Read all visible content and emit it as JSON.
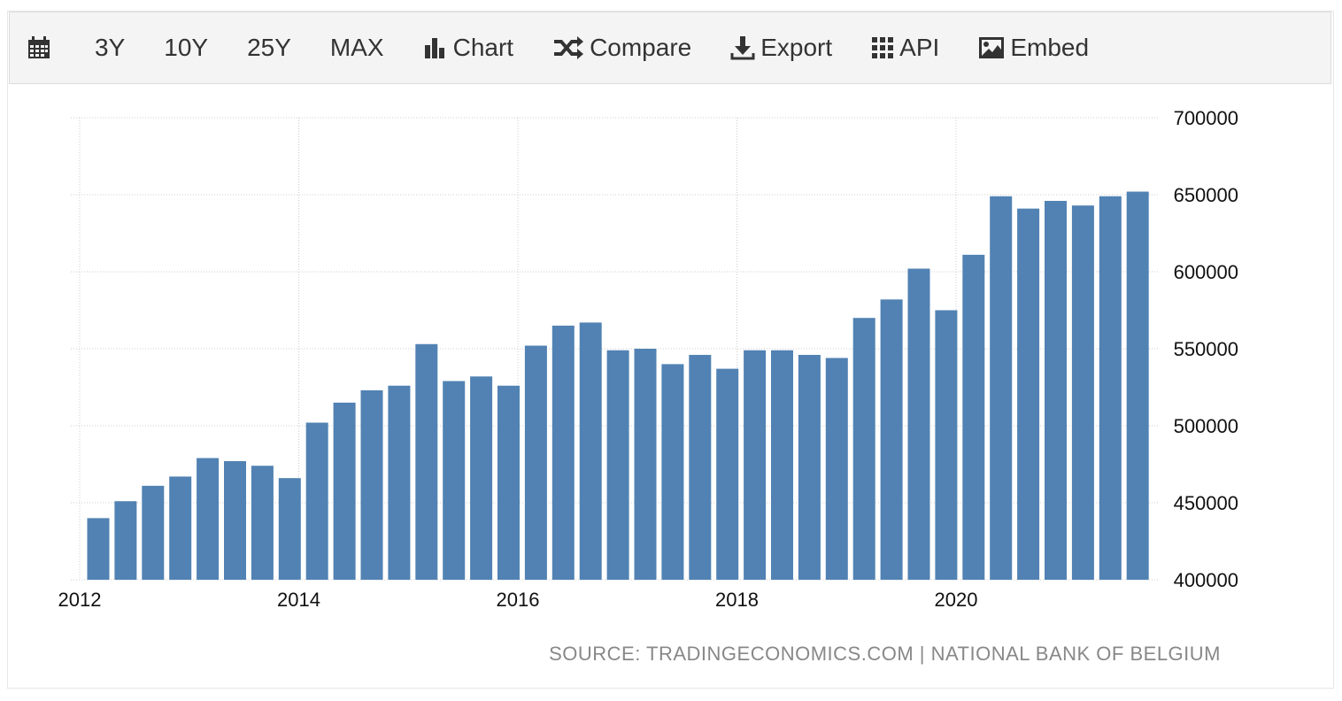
{
  "toolbar": {
    "items": [
      {
        "label": "",
        "icon": "calendar-icon"
      },
      {
        "label": "3Y"
      },
      {
        "label": "10Y"
      },
      {
        "label": "25Y"
      },
      {
        "label": "MAX"
      },
      {
        "label": "Chart",
        "icon": "bar-chart-icon"
      },
      {
        "label": "Compare",
        "icon": "shuffle-icon"
      },
      {
        "label": "Export",
        "icon": "download-icon"
      },
      {
        "label": "API",
        "icon": "grid-icon"
      },
      {
        "label": "Embed",
        "icon": "image-icon"
      }
    ]
  },
  "source": "SOURCE: TRADINGECONOMICS.COM | NATIONAL BANK OF BELGIUM",
  "chart_data": {
    "type": "bar",
    "color": "#5182b3",
    "x_ticks": [
      "2012",
      "2014",
      "2016",
      "2018",
      "2020"
    ],
    "y_ticks": [
      "400000",
      "450000",
      "500000",
      "550000",
      "600000",
      "650000",
      "700000"
    ],
    "ylim": [
      400000,
      700000
    ],
    "y_axis_side": "right",
    "grid": true,
    "values": [
      440000,
      451000,
      461000,
      467000,
      479000,
      477000,
      474000,
      466000,
      502000,
      515000,
      523000,
      526000,
      553000,
      529000,
      532000,
      526000,
      552000,
      565000,
      567000,
      549000,
      550000,
      540000,
      546000,
      537000,
      549000,
      549000,
      546000,
      544000,
      570000,
      582000,
      602000,
      575000,
      611000,
      649000,
      641000,
      646000,
      643000,
      649000,
      652000
    ]
  }
}
